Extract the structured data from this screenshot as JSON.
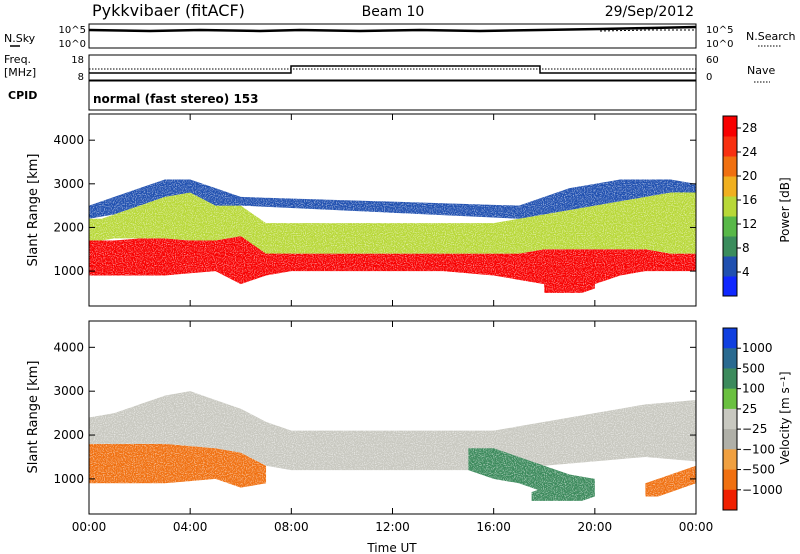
{
  "header": {
    "title": "Pykkvibaer (fitACF)",
    "beam": "Beam 10",
    "date": "29/Sep/2012"
  },
  "summary_panels": {
    "nsky_label": "N.Sky",
    "nsearch_label": "N.Search",
    "nsky_ticks": [
      "10^5",
      "10^0"
    ],
    "nsearch_ticks": [
      "10^5",
      "10^0"
    ],
    "freq_label_line1": "Freq.",
    "freq_label_line2": "[MHz]",
    "freq_ticks": [
      "18",
      "8"
    ],
    "nave_label": "Nave",
    "nave_ticks": [
      "60",
      "0"
    ],
    "cpid_label": "CPID",
    "cpid_text": "normal (fast stereo) 153"
  },
  "colors": {
    "power_scale": [
      "#1028ff",
      "#2050b0",
      "#3a8c5c",
      "#58b848",
      "#b8d838",
      "#f0b020",
      "#f07010",
      "#f83010",
      "#f80000"
    ],
    "velocity_scale": [
      "#1040e0",
      "#2a6a90",
      "#3c8a5c",
      "#6ac040",
      "#c8c8c0",
      "#b0b0a8",
      "#f0a040",
      "#f07010",
      "#f02000"
    ]
  },
  "chart_data": [
    {
      "type": "heatmap",
      "name": "power-panel",
      "xlabel": "",
      "ylabel": "Slant Range [km]",
      "xlim": [
        0,
        24
      ],
      "ylim": [
        200,
        4600
      ],
      "x_ticks": [
        "00:00",
        "04:00",
        "08:00",
        "12:00",
        "16:00",
        "20:00",
        "00:00"
      ],
      "y_ticks": [
        "1000",
        "2000",
        "3000",
        "4000"
      ],
      "colorbar_label": "Power [dB]",
      "colorbar_ticks": [
        "4",
        "8",
        "12",
        "16",
        "20",
        "24",
        "28"
      ],
      "colorbar_range": [
        0,
        30
      ],
      "bands": [
        {
          "x": [
            0.0,
            0.5,
            1.0,
            2.0,
            3.0,
            4.0,
            5.0,
            6.0,
            7.0,
            8.0,
            10.0,
            12.0,
            14.0,
            16.0,
            17.0,
            18.0,
            19.0,
            20.0,
            21.0,
            22.0,
            23.0,
            24.0
          ],
          "lower": [
            900,
            900,
            900,
            900,
            900,
            950,
            1000,
            700,
            900,
            1000,
            1000,
            1000,
            1000,
            900,
            800,
            700,
            600,
            700,
            900,
            1000,
            1000,
            1000
          ],
          "upper": [
            1700,
            1700,
            1700,
            1750,
            1750,
            1700,
            1700,
            1800,
            1600,
            1400,
            1400,
            1400,
            1400,
            1400,
            1400,
            1500,
            1500,
            1500,
            1500,
            1500,
            1400,
            1400
          ],
          "level": 28
        },
        {
          "x": [
            0.0,
            0.5,
            1.0,
            2.0,
            3.0,
            4.0,
            5.0,
            6.0,
            7.0,
            8.0,
            10.0,
            12.0,
            14.0,
            16.0,
            17.0,
            18.0,
            19.0,
            20.0,
            21.0,
            22.0,
            23.0,
            24.0
          ],
          "lower": [
            1700,
            1700,
            1750,
            1750,
            1750,
            1700,
            1700,
            1800,
            1400,
            1400,
            1400,
            1400,
            1400,
            1400,
            1400,
            1500,
            1500,
            1500,
            1500,
            1500,
            1400,
            1400
          ],
          "upper": [
            2200,
            2200,
            2300,
            2500,
            2700,
            2800,
            2500,
            2500,
            2100,
            2100,
            2100,
            2100,
            2100,
            2100,
            2200,
            2300,
            2400,
            2500,
            2600,
            2700,
            2800,
            2800
          ],
          "level": 16
        },
        {
          "x": [
            0.0,
            1.0,
            2.0,
            3.0,
            4.0,
            5.0,
            6.0,
            17.0,
            18.0,
            19.0,
            20.0,
            21.0,
            22.0,
            23.0,
            24.0
          ],
          "lower": [
            2200,
            2300,
            2500,
            2700,
            2800,
            2500,
            2500,
            2200,
            2300,
            2400,
            2500,
            2600,
            2700,
            2800,
            2800
          ],
          "upper": [
            2500,
            2700,
            2900,
            3100,
            3100,
            2900,
            2700,
            2500,
            2700,
            2900,
            3000,
            3100,
            3100,
            3100,
            3000
          ],
          "level": 6
        },
        {
          "x": [
            18.0,
            18.5,
            19.0,
            19.5,
            20.0
          ],
          "lower": [
            500,
            500,
            500,
            500,
            600
          ],
          "upper": [
            900,
            1000,
            1000,
            900,
            800
          ],
          "level": 30
        }
      ]
    },
    {
      "type": "heatmap",
      "name": "velocity-panel",
      "xlabel": "Time UT",
      "ylabel": "Slant Range [km]",
      "xlim": [
        0,
        24
      ],
      "ylim": [
        200,
        4600
      ],
      "x_ticks": [
        "00:00",
        "04:00",
        "08:00",
        "12:00",
        "16:00",
        "20:00",
        "00:00"
      ],
      "y_ticks": [
        "1000",
        "2000",
        "3000",
        "4000"
      ],
      "colorbar_label": "Velocity [m s⁻¹]",
      "colorbar_ticks": [
        "1000",
        "500",
        "100",
        "25",
        "−25",
        "−100",
        "−500",
        "−1000"
      ],
      "bands": [
        {
          "x": [
            0.0,
            1.0,
            2.0,
            3.0,
            4.0,
            5.0,
            6.0,
            7.0
          ],
          "lower": [
            900,
            900,
            900,
            900,
            950,
            1000,
            800,
            900
          ],
          "upper": [
            1800,
            1800,
            1800,
            1800,
            1750,
            1700,
            1600,
            1300
          ],
          "level": -300
        },
        {
          "x": [
            0.0,
            1.0,
            2.0,
            3.0,
            4.0,
            5.0,
            6.0,
            7.0,
            8.0,
            10.0,
            12.0,
            14.0,
            16.0,
            18.0,
            20.0,
            22.0,
            24.0
          ],
          "lower": [
            1800,
            1800,
            1800,
            1800,
            1750,
            1700,
            1600,
            1300,
            1200,
            1200,
            1200,
            1200,
            1200,
            1300,
            1400,
            1500,
            1400
          ],
          "upper": [
            2400,
            2500,
            2700,
            2900,
            3000,
            2800,
            2600,
            2300,
            2100,
            2100,
            2100,
            2100,
            2100,
            2300,
            2500,
            2700,
            2800
          ],
          "level": 0
        },
        {
          "x": [
            15.0,
            16.0,
            17.0,
            18.0,
            19.0,
            20.0
          ],
          "lower": [
            1200,
            1000,
            900,
            700,
            600,
            700
          ],
          "upper": [
            1700,
            1700,
            1500,
            1300,
            1100,
            1000
          ],
          "level": 150
        },
        {
          "x": [
            17.5,
            18.0,
            18.5,
            19.0,
            19.5,
            20.0
          ],
          "lower": [
            500,
            500,
            500,
            500,
            500,
            600
          ],
          "upper": [
            700,
            800,
            800,
            800,
            700,
            700
          ],
          "level": 300
        },
        {
          "x": [
            22.0,
            22.5,
            23.0,
            23.5,
            24.0
          ],
          "lower": [
            600,
            600,
            700,
            800,
            900
          ],
          "upper": [
            900,
            1000,
            1100,
            1200,
            1300
          ],
          "level": -400
        }
      ]
    }
  ]
}
